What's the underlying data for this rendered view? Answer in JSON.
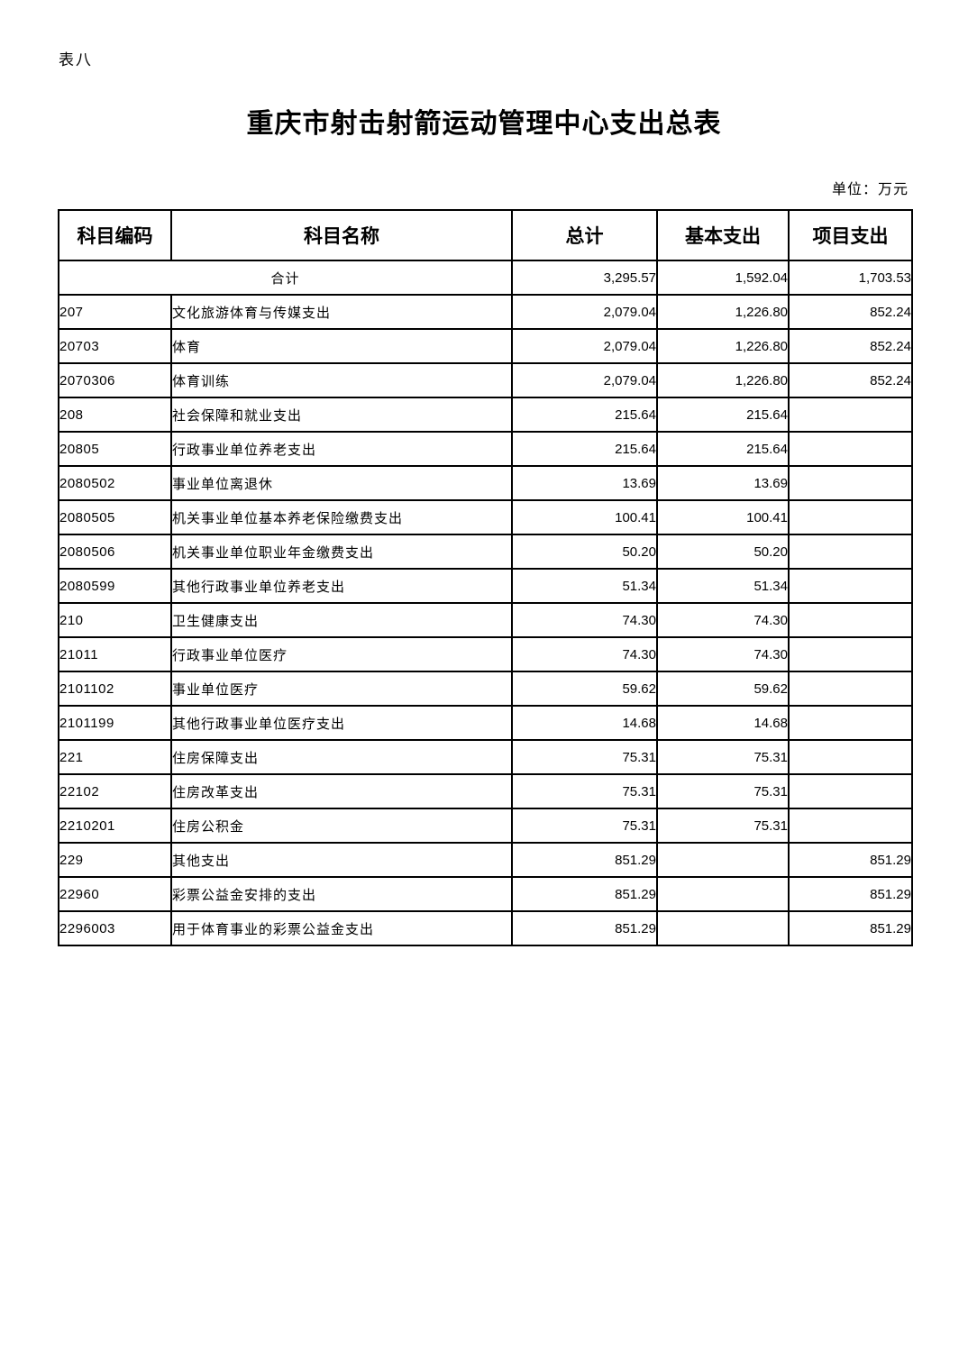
{
  "page": {
    "sheet_label": "表八",
    "title": "重庆市射击射箭运动管理中心支出总表",
    "unit_note": "单位：万元"
  },
  "table": {
    "columns": [
      "科目编码",
      "科目名称",
      "总计",
      "基本支出",
      "项目支出"
    ],
    "summary_row": {
      "name": "合计",
      "total": "3,295.57",
      "basic": "1,592.04",
      "project": "1,703.53"
    },
    "rows": [
      {
        "code": "207",
        "name": "文化旅游体育与传媒支出",
        "total": "2,079.04",
        "basic": "1,226.80",
        "project": "852.24",
        "level": 1
      },
      {
        "code": "20703",
        "name": "体育",
        "total": "2,079.04",
        "basic": "1,226.80",
        "project": "852.24",
        "level": 2
      },
      {
        "code": "2070306",
        "name": "体育训练",
        "total": "2,079.04",
        "basic": "1,226.80",
        "project": "852.24",
        "level": 3
      },
      {
        "code": "208",
        "name": "社会保障和就业支出",
        "total": "215.64",
        "basic": "215.64",
        "project": "",
        "level": 1
      },
      {
        "code": "20805",
        "name": "行政事业单位养老支出",
        "total": "215.64",
        "basic": "215.64",
        "project": "",
        "level": 2
      },
      {
        "code": "2080502",
        "name": "事业单位离退休",
        "total": "13.69",
        "basic": "13.69",
        "project": "",
        "level": 3
      },
      {
        "code": "2080505",
        "name": "机关事业单位基本养老保险缴费支出",
        "total": "100.41",
        "basic": "100.41",
        "project": "",
        "level": 3
      },
      {
        "code": "2080506",
        "name": "机关事业单位职业年金缴费支出",
        "total": "50.20",
        "basic": "50.20",
        "project": "",
        "level": 3
      },
      {
        "code": "2080599",
        "name": "其他行政事业单位养老支出",
        "total": "51.34",
        "basic": "51.34",
        "project": "",
        "level": 3
      },
      {
        "code": "210",
        "name": "卫生健康支出",
        "total": "74.30",
        "basic": "74.30",
        "project": "",
        "level": 1
      },
      {
        "code": "21011",
        "name": "行政事业单位医疗",
        "total": "74.30",
        "basic": "74.30",
        "project": "",
        "level": 2
      },
      {
        "code": "2101102",
        "name": "事业单位医疗",
        "total": "59.62",
        "basic": "59.62",
        "project": "",
        "level": 3
      },
      {
        "code": "2101199",
        "name": "其他行政事业单位医疗支出",
        "total": "14.68",
        "basic": "14.68",
        "project": "",
        "level": 3
      },
      {
        "code": "221",
        "name": "住房保障支出",
        "total": "75.31",
        "basic": "75.31",
        "project": "",
        "level": 1
      },
      {
        "code": "22102",
        "name": "住房改革支出",
        "total": "75.31",
        "basic": "75.31",
        "project": "",
        "level": 2
      },
      {
        "code": "2210201",
        "name": "住房公积金",
        "total": "75.31",
        "basic": "75.31",
        "project": "",
        "level": 3
      },
      {
        "code": "229",
        "name": "其他支出",
        "total": "851.29",
        "basic": "",
        "project": "851.29",
        "level": 1
      },
      {
        "code": "22960",
        "name": "彩票公益金安排的支出",
        "total": "851.29",
        "basic": "",
        "project": "851.29",
        "level": 2
      },
      {
        "code": "2296003",
        "name": "用于体育事业的彩票公益金支出",
        "total": "851.29",
        "basic": "",
        "project": "851.29",
        "level": 3
      }
    ]
  },
  "colors": {
    "text": "#000000",
    "border": "#000000",
    "background": "#ffffff"
  }
}
